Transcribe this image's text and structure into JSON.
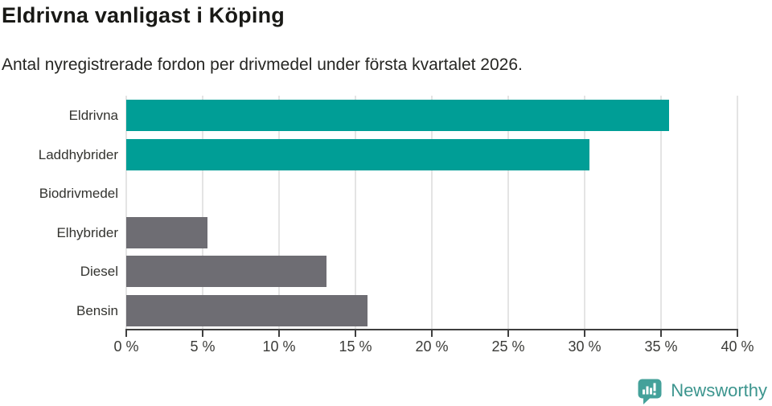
{
  "title": "Eldrivna vanligast i Köping",
  "subtitle": "Antal nyregistrerade fordon per drivmedel under första kvartalet 2026.",
  "colors": {
    "teal_bar": "#009e96",
    "gray_bar": "#6e6d73",
    "gridline": "#e4e4e4",
    "axis": "#3f3f3f",
    "brand_teal": "#44a19a"
  },
  "chart_data": {
    "type": "bar",
    "orientation": "horizontal",
    "title": "Eldrivna vanligast i Köping",
    "subtitle": "Antal nyregistrerade fordon per drivmedel under första kvartalet 2026.",
    "categories": [
      "Eldrivna",
      "Laddhybrider",
      "Biodrivmedel",
      "Elhybrider",
      "Diesel",
      "Bensin"
    ],
    "values": [
      35.5,
      30.3,
      0,
      5.3,
      13.1,
      15.8
    ],
    "bar_colors": [
      "#009e96",
      "#009e96",
      "#6e6d73",
      "#6e6d73",
      "#6e6d73",
      "#6e6d73"
    ],
    "xlim": [
      0,
      40
    ],
    "xticks": [
      0,
      5,
      10,
      15,
      20,
      25,
      30,
      35,
      40
    ],
    "xtick_labels": [
      "0 %",
      "5 %",
      "10 %",
      "15 %",
      "20 %",
      "25 %",
      "30 %",
      "35 %",
      "40 %"
    ],
    "xlabel": "",
    "ylabel": "",
    "grid": true,
    "legend": false
  },
  "footer": {
    "brand": "Newsworthy"
  }
}
